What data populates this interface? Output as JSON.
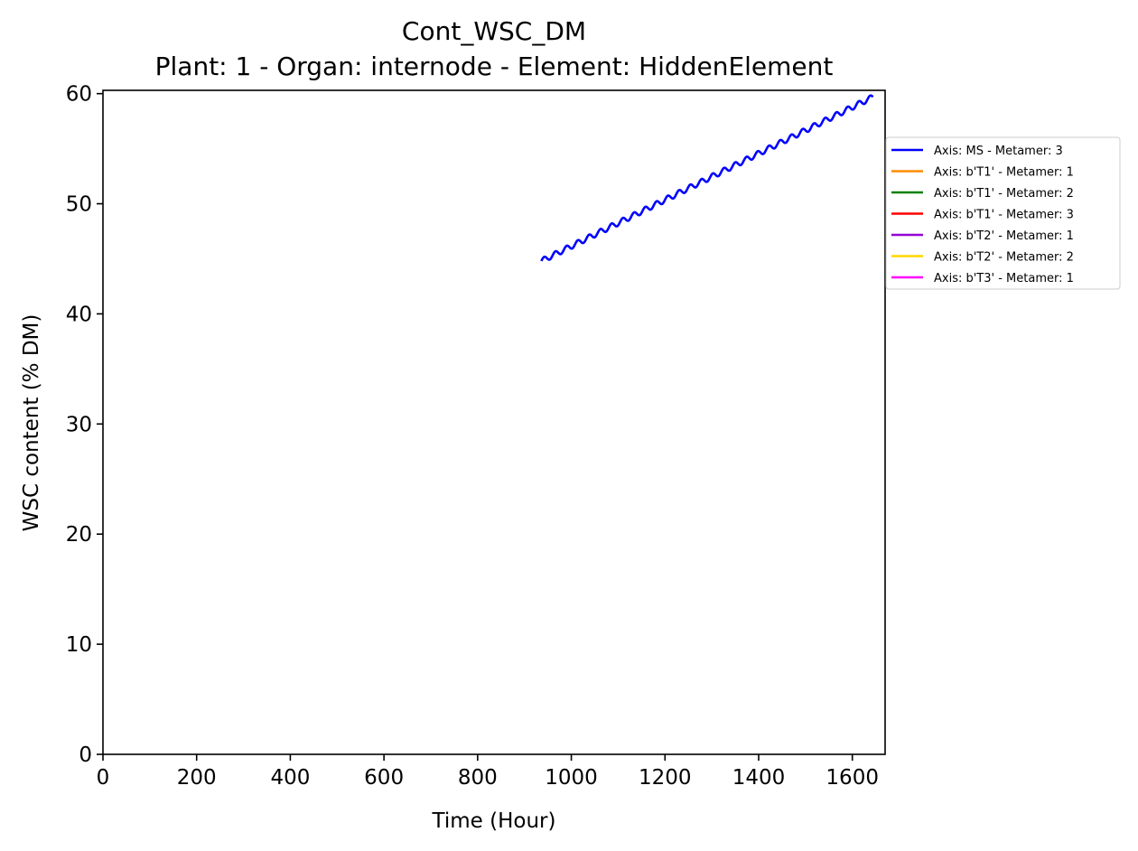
{
  "chart_data": {
    "type": "line",
    "title": "Cont_WSC_DM",
    "subtitle": "Plant: 1 - Organ: internode - Element: HiddenElement",
    "xlabel": "Time (Hour)",
    "ylabel": "WSC content (% DM)",
    "xlim": [
      0,
      1670
    ],
    "ylim": [
      0,
      60.3
    ],
    "xticks": [
      0,
      200,
      400,
      600,
      800,
      1000,
      1200,
      1400,
      1600
    ],
    "yticks": [
      0,
      10,
      20,
      30,
      40,
      50,
      60
    ],
    "grid": false,
    "legend_position": "outside-right",
    "series": [
      {
        "name": "Axis: MS - Metamer: 3",
        "color": "#0000ff",
        "x_start": 936,
        "x_end": 1644,
        "y_start": 44.8,
        "y_end": 59.7,
        "oscillation_period_hours": 24,
        "oscillation_amplitude": 0.25
      },
      {
        "name": "Axis: b'T1' - Metamer: 1",
        "color": "#ff8c00",
        "x": [],
        "y": []
      },
      {
        "name": "Axis: b'T1' - Metamer: 2",
        "color": "#008000",
        "x": [],
        "y": []
      },
      {
        "name": "Axis: b'T1' - Metamer: 3",
        "color": "#ff0000",
        "x": [],
        "y": []
      },
      {
        "name": "Axis: b'T2' - Metamer: 1",
        "color": "#9400d3",
        "x": [],
        "y": []
      },
      {
        "name": "Axis: b'T2' - Metamer: 2",
        "color": "#ffd700",
        "x": [],
        "y": []
      },
      {
        "name": "Axis: b'T3' - Metamer: 1",
        "color": "#ff00ff",
        "x": [],
        "y": []
      }
    ]
  }
}
